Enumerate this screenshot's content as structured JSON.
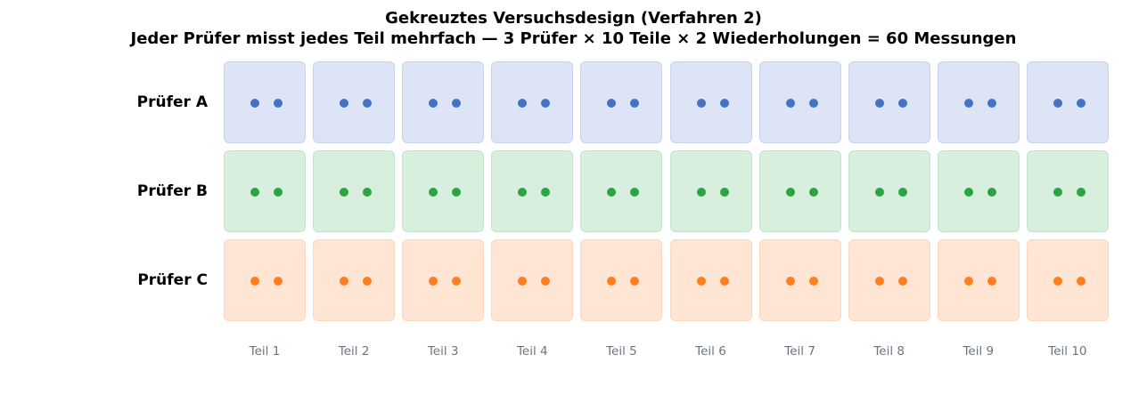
{
  "title": "Gekreuztes Versuchsdesign (Verfahren 2)",
  "subtitle": "Jeder Prüfer misst jedes Teil mehrfach — 3 Prüfer × 10 Teile × 2 Wiederholungen = 60 Messungen",
  "repetitions": 2,
  "operators": [
    {
      "label": "Prüfer A",
      "fill": "#dde4f5",
      "border": "#c6d2ef",
      "dot": "#4472c4"
    },
    {
      "label": "Prüfer B",
      "fill": "#d8efdd",
      "border": "#c3e6cb",
      "dot": "#2ca444"
    },
    {
      "label": "Prüfer C",
      "fill": "#ffe5d4",
      "border": "#ffd6bc",
      "dot": "#ff7f1e"
    }
  ],
  "parts": [
    "Teil 1",
    "Teil 2",
    "Teil 3",
    "Teil 4",
    "Teil 5",
    "Teil 6",
    "Teil 7",
    "Teil 8",
    "Teil 9",
    "Teil 10"
  ]
}
